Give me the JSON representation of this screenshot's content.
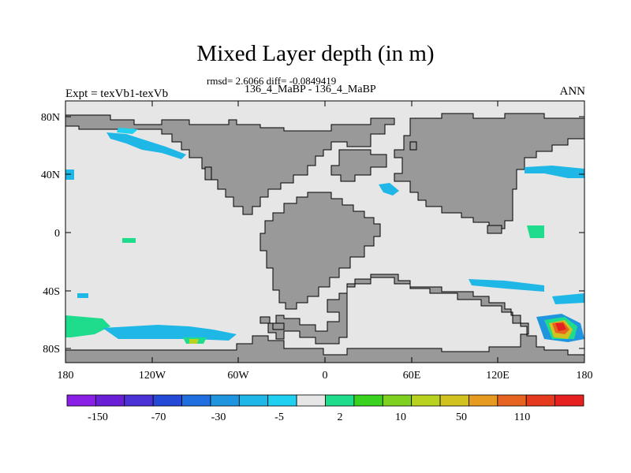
{
  "title": "Mixed Layer depth (in m)",
  "stats": "rmsd= 2.6066 diff= -0.0849419",
  "subtitle": "136_4_MaBP - 136_4_MaBP",
  "left_label": "Expt = texVb1-texVb",
  "right_label": "ANN",
  "y_ticks": [
    "80N",
    "40N",
    "0",
    "40S",
    "80S"
  ],
  "x_ticks": [
    "180",
    "120W",
    "60W",
    "0",
    "60E",
    "120E",
    "180"
  ],
  "colorbar": {
    "colors": [
      "#8a1fe6",
      "#6a1fd6",
      "#4a32d6",
      "#2449d6",
      "#1f6fe0",
      "#1f95e0",
      "#1fb8e6",
      "#1fd0f0",
      "#e6e6e6",
      "#1fdc8c",
      "#38d21f",
      "#7ed21f",
      "#b8d21f",
      "#d2c21f",
      "#e69a1f",
      "#e6641f",
      "#e63a1f",
      "#e61f1f"
    ],
    "labels": [
      "-150",
      "-70",
      "-30",
      "-5",
      "2",
      "10",
      "50",
      "110"
    ]
  },
  "colors": {
    "land": "#999999",
    "ocean": "#e6e6e6"
  }
}
